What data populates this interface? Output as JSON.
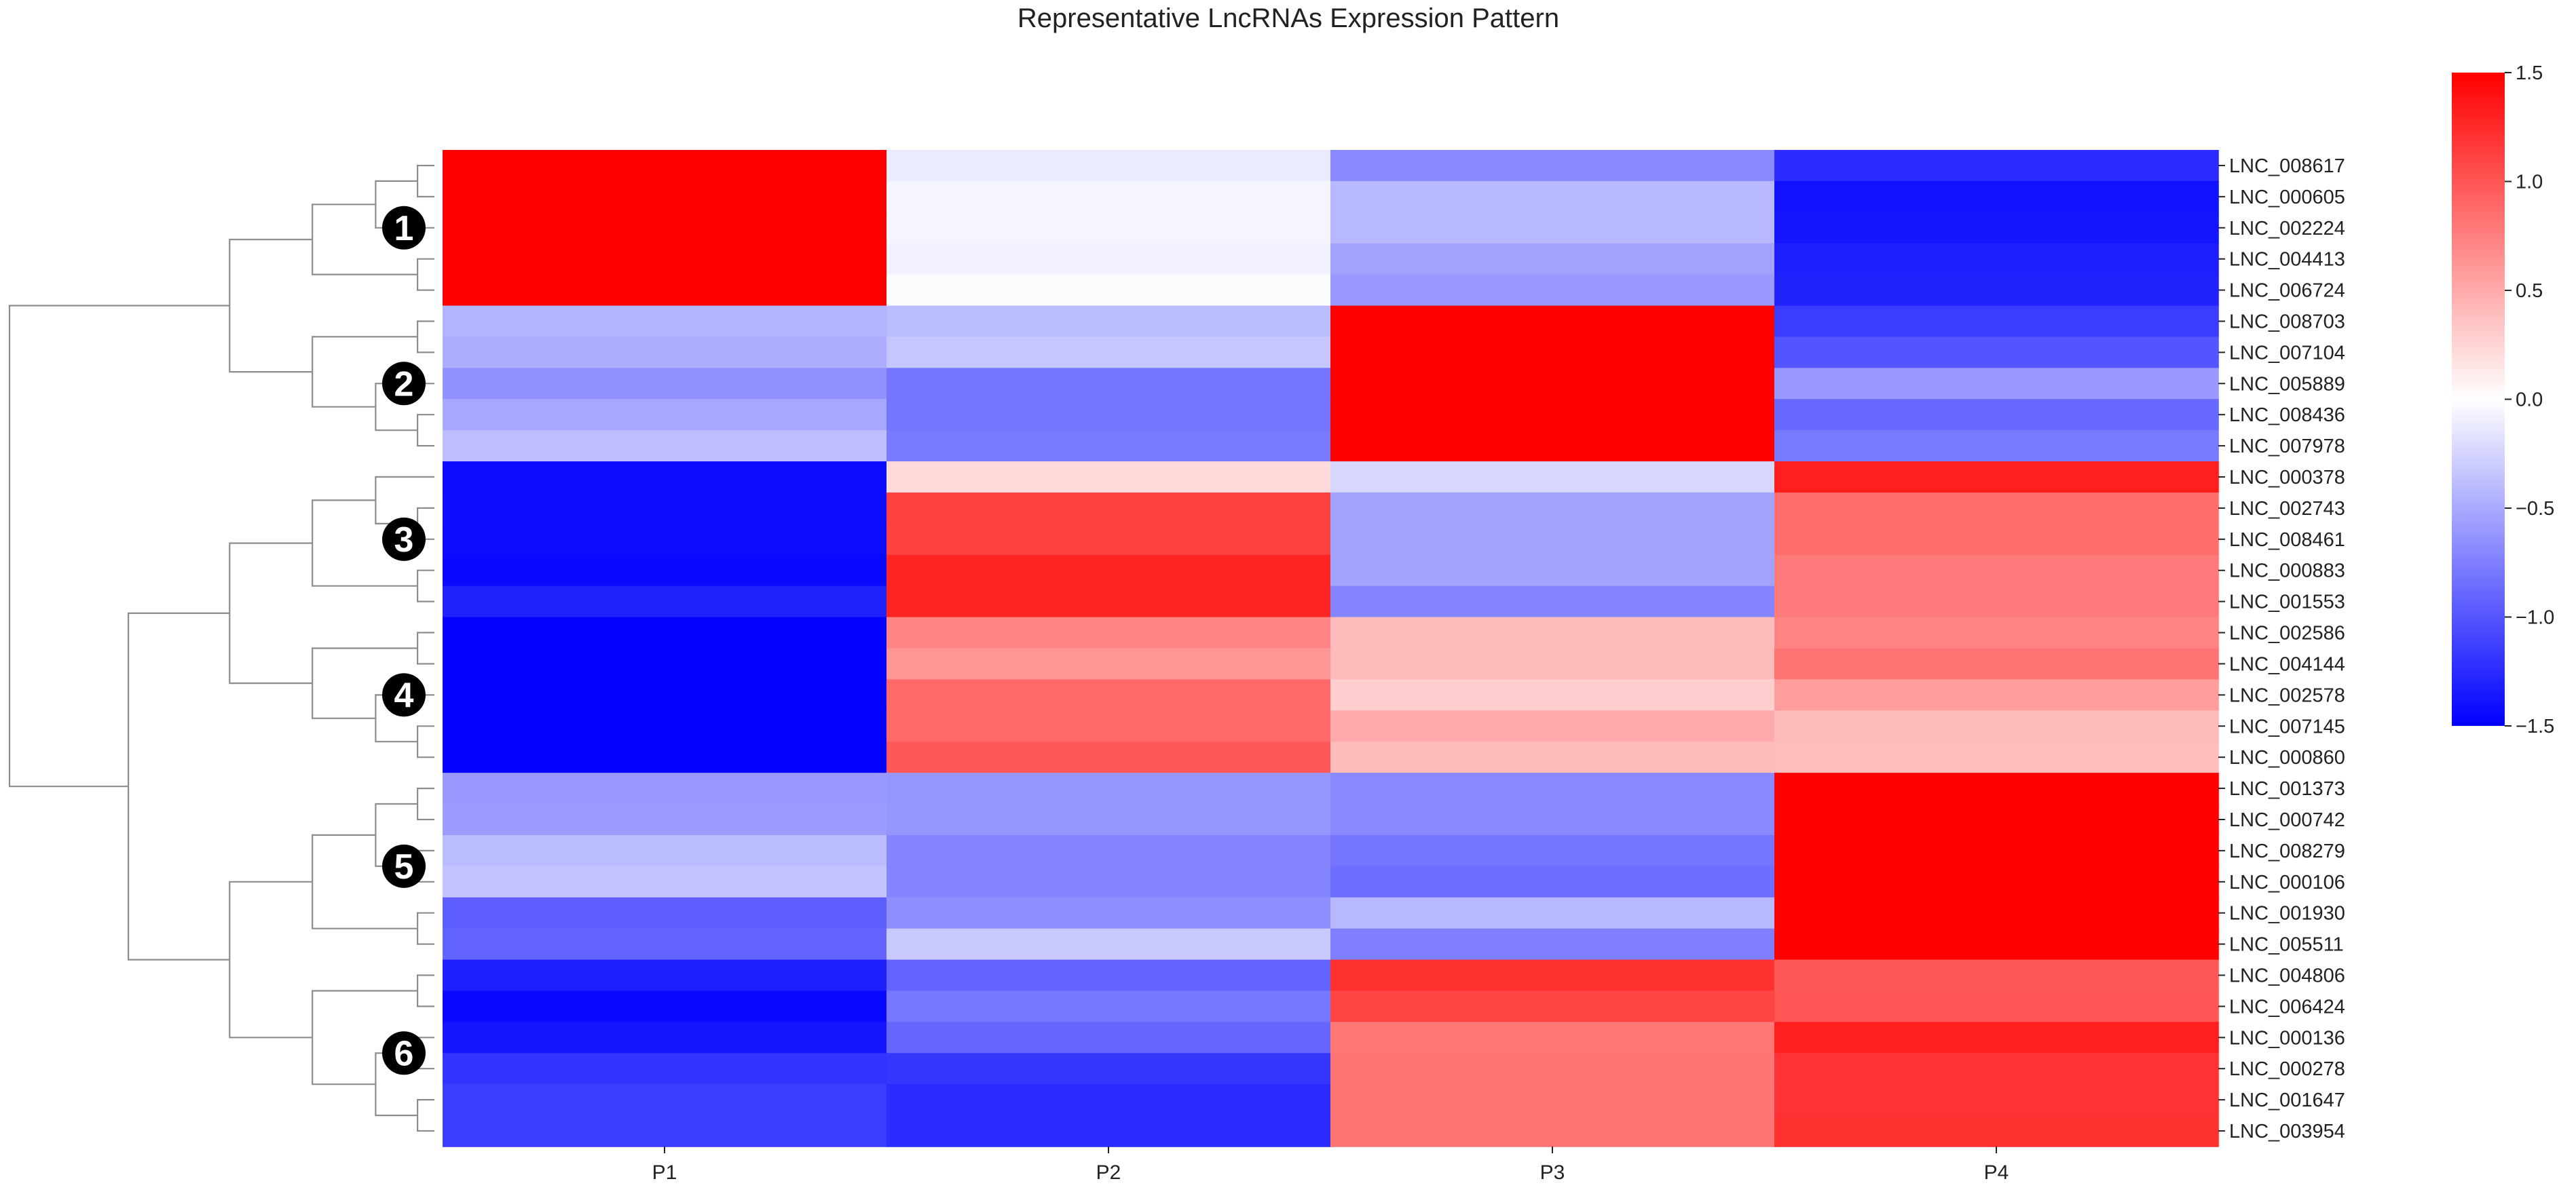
{
  "chart_data": {
    "type": "heatmap",
    "title": "Representative LncRNAs Expression Pattern",
    "xlabel": "",
    "ylabel": "",
    "columns": [
      "P1",
      "P2",
      "P3",
      "P4"
    ],
    "rows": [
      "LNC_008617",
      "LNC_000605",
      "LNC_002224",
      "LNC_004413",
      "LNC_006724",
      "LNC_008703",
      "LNC_007104",
      "LNC_005889",
      "LNC_008436",
      "LNC_007978",
      "LNC_000378",
      "LNC_002743",
      "LNC_008461",
      "LNC_000883",
      "LNC_001553",
      "LNC_002586",
      "LNC_004144",
      "LNC_002578",
      "LNC_007145",
      "LNC_000860",
      "LNC_001373",
      "LNC_000742",
      "LNC_008279",
      "LNC_000106",
      "LNC_001930",
      "LNC_005511",
      "LNC_004806",
      "LNC_006424",
      "LNC_000136",
      "LNC_000278",
      "LNC_001647",
      "LNC_003954"
    ],
    "values": [
      [
        1.5,
        -0.12,
        -0.7,
        -1.25
      ],
      [
        1.5,
        -0.06,
        -0.42,
        -1.4
      ],
      [
        1.5,
        -0.06,
        -0.42,
        -1.38
      ],
      [
        1.5,
        -0.08,
        -0.55,
        -1.32
      ],
      [
        1.5,
        -0.02,
        -0.6,
        -1.3
      ],
      [
        -0.45,
        -0.4,
        1.5,
        -1.15
      ],
      [
        -0.48,
        -0.34,
        1.5,
        -1.0
      ],
      [
        -0.65,
        -0.82,
        1.5,
        -0.6
      ],
      [
        -0.52,
        -0.82,
        1.5,
        -0.88
      ],
      [
        -0.38,
        -0.78,
        1.5,
        -0.78
      ],
      [
        -1.43,
        0.22,
        -0.24,
        1.32
      ],
      [
        -1.42,
        1.12,
        -0.55,
        0.86
      ],
      [
        -1.43,
        1.12,
        -0.55,
        0.86
      ],
      [
        -1.45,
        1.28,
        -0.55,
        0.78
      ],
      [
        -1.3,
        1.28,
        -0.72,
        0.78
      ],
      [
        -1.48,
        0.72,
        0.4,
        0.72
      ],
      [
        -1.48,
        0.62,
        0.4,
        0.82
      ],
      [
        -1.48,
        0.88,
        0.28,
        0.58
      ],
      [
        -1.48,
        0.88,
        0.5,
        0.4
      ],
      [
        -1.48,
        0.98,
        0.4,
        0.38
      ],
      [
        -0.6,
        -0.62,
        -0.7,
        1.5
      ],
      [
        -0.58,
        -0.62,
        -0.7,
        1.5
      ],
      [
        -0.4,
        -0.72,
        -0.82,
        1.5
      ],
      [
        -0.35,
        -0.72,
        -0.86,
        1.5
      ],
      [
        -0.95,
        -0.66,
        -0.42,
        1.5
      ],
      [
        -0.92,
        -0.32,
        -0.76,
        1.5
      ],
      [
        -1.32,
        -0.92,
        1.22,
        0.98
      ],
      [
        -1.45,
        -0.8,
        1.1,
        1.0
      ],
      [
        -1.38,
        -0.9,
        0.8,
        1.32
      ],
      [
        -1.2,
        -1.18,
        0.82,
        1.2
      ],
      [
        -1.15,
        -1.25,
        0.82,
        1.2
      ],
      [
        -1.15,
        -1.25,
        0.82,
        1.22
      ]
    ],
    "colormap": {
      "low": "#0000ff",
      "mid": "#ffffff",
      "high": "#ff0000"
    },
    "colorbar": {
      "min": -1.5,
      "max": 1.5,
      "ticks": [
        "1.5",
        "1.0",
        "0.5",
        "0.0",
        "−0.5",
        "−1.0",
        "−1.5"
      ]
    },
    "clusters": [
      {
        "label": "1",
        "rows": [
          "LNC_008617",
          "LNC_000605",
          "LNC_002224",
          "LNC_004413",
          "LNC_006724"
        ]
      },
      {
        "label": "2",
        "rows": [
          "LNC_008703",
          "LNC_007104",
          "LNC_005889",
          "LNC_008436",
          "LNC_007978"
        ]
      },
      {
        "label": "3",
        "rows": [
          "LNC_000378",
          "LNC_002743",
          "LNC_008461",
          "LNC_000883",
          "LNC_001553"
        ]
      },
      {
        "label": "4",
        "rows": [
          "LNC_002586",
          "LNC_004144",
          "LNC_002578",
          "LNC_007145",
          "LNC_000860"
        ]
      },
      {
        "label": "5",
        "rows": [
          "LNC_001373",
          "LNC_000742",
          "LNC_008279",
          "LNC_000106",
          "LNC_001930",
          "LNC_005511"
        ]
      },
      {
        "label": "6",
        "rows": [
          "LNC_004806",
          "LNC_006424",
          "LNC_000136",
          "LNC_000278",
          "LNC_001647",
          "LNC_003954"
        ]
      }
    ],
    "dendrogram": "hierarchical clustering of rows (left side)"
  }
}
